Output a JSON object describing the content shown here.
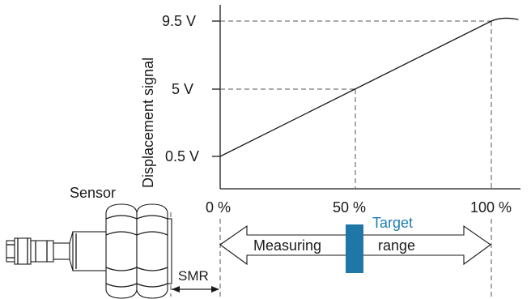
{
  "chart_data": {
    "type": "line",
    "ylabel": "Displacement signal",
    "y_ticks": [
      "9.5 V",
      "5 V",
      "0.5 V"
    ],
    "x_ticks": [
      "0 %",
      "50 %",
      "100 %"
    ],
    "series": [
      {
        "x": [
          0,
          50,
          100,
          110
        ],
        "y": [
          0.5,
          5,
          9.5,
          9.6
        ]
      }
    ]
  },
  "labels": {
    "sensor": "Sensor",
    "smr": "SMR",
    "measuring": "Measuring",
    "range": "range",
    "target": "Target"
  },
  "colors": {
    "target": "#1f77a8",
    "target_text": "#1f7fb3"
  }
}
